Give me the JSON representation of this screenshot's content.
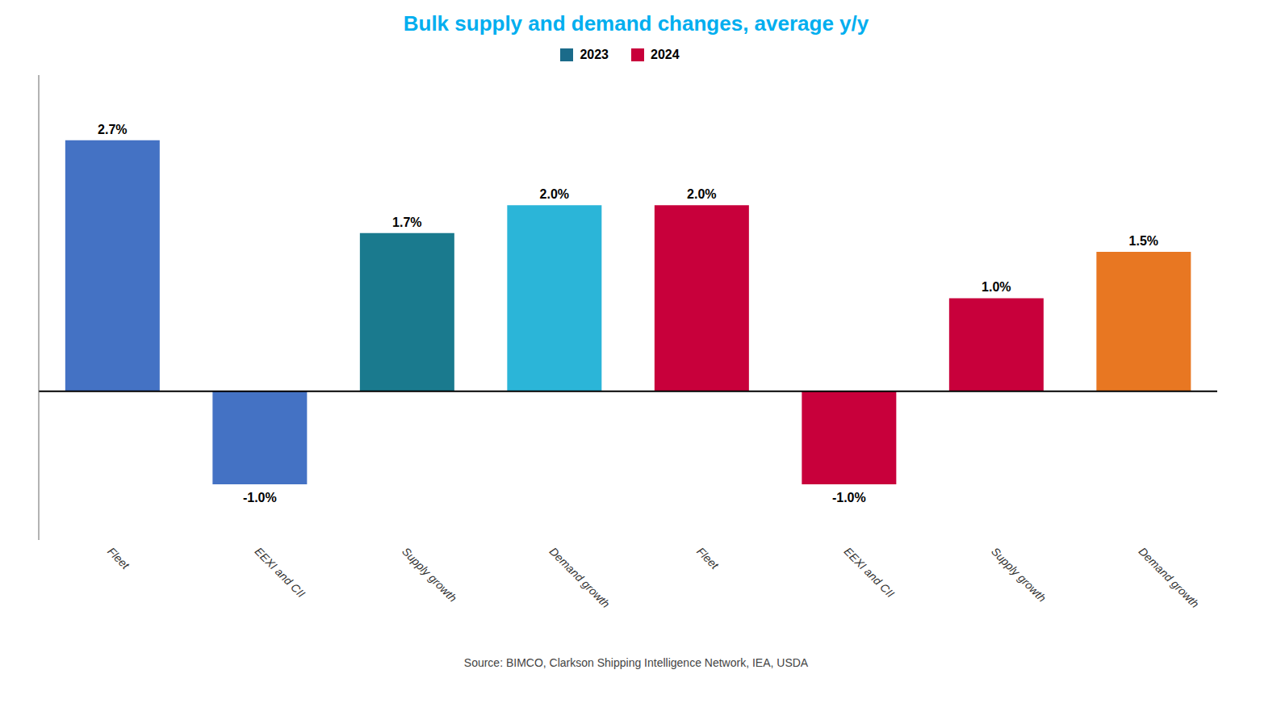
{
  "chart_data": {
    "type": "bar",
    "title": "Bulk supply and demand changes, average y/y",
    "annotations": [
      "Source: BIMCO, Clarkson Shipping Intelligence Network, IEA, USDA"
    ],
    "categories": [
      "Fleet",
      "EEXI and CII",
      "Supply growth",
      "Demand growth",
      "Fleet",
      "EEXI and CII",
      "Supply growth",
      "Demand growth"
    ],
    "series": [
      {
        "name": "2023",
        "color": "#1B6B8A",
        "values": [
          2.7,
          -1.0,
          1.7,
          2.0,
          null,
          null,
          null,
          null
        ],
        "value_labels": [
          "2.7%",
          "-1.0%",
          "1.7%",
          "2.0%",
          null,
          null,
          null,
          null
        ],
        "colors": [
          "#4472C4",
          "#4472C4",
          "#1A7A8E",
          "#2BB5D8",
          null,
          null,
          null,
          null
        ]
      },
      {
        "name": "2024",
        "color": "#C8003B",
        "values": [
          null,
          null,
          null,
          null,
          2.0,
          -1.0,
          1.0,
          1.5
        ],
        "value_labels": [
          null,
          null,
          null,
          null,
          "2.0%",
          "-1.0%",
          "1.0%",
          "1.5%"
        ],
        "colors": [
          null,
          null,
          null,
          null,
          "#C8003B",
          "#C8003B",
          "#C8003B",
          "#E87722"
        ]
      }
    ],
    "ylim": [
      -1.6,
      3.4
    ],
    "data_labels": true,
    "tick_labels": "x",
    "grid": false,
    "title_color": "#00AEEF"
  }
}
